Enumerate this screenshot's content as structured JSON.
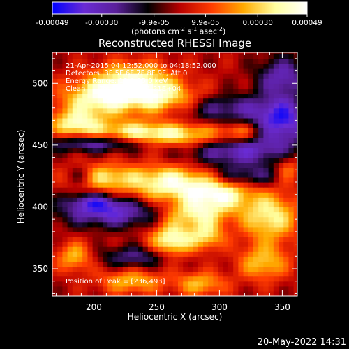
{
  "chart_data": {
    "type": "heatmap",
    "title": "Reconstructed RHESSI Image",
    "xlabel": "Heliocentric X (arcsec)",
    "ylabel": "Heliocentric Y (arcsec)",
    "xlim": [
      167,
      362
    ],
    "ylim": [
      328,
      525
    ],
    "xticks": [
      200,
      250,
      300,
      350
    ],
    "yticks": [
      350,
      400,
      450,
      500
    ],
    "grid": false,
    "colorbar": {
      "location": "top",
      "unit": "(photons cm^-2 s^-1 asec^-2)",
      "range": [
        -0.00049,
        0.00049
      ],
      "tick_values": [
        -0.00049,
        -0.0003,
        -9.9e-05,
        9.9e-05,
        0.0003,
        0.00049
      ],
      "tick_labels": [
        "-0.00049",
        "-0.00030",
        "-9.9e-05",
        "9.9e-05",
        "0.00030",
        "0.00049"
      ],
      "colors": [
        "#0000ff",
        "#6a2bd4",
        "#5a1f9a",
        "#000000",
        "#b80000",
        "#ff3c00",
        "#ffaa00",
        "#ffffa0",
        "#ffffff"
      ]
    },
    "grid_resolution_arcsec": 4,
    "peak_position": [
      236,
      493
    ],
    "sources": [
      {
        "x": 232,
        "y": 498,
        "sx": 22,
        "sy": 12,
        "amp": 1.15
      },
      {
        "x": 200,
        "y": 487,
        "sx": 20,
        "sy": 11,
        "amp": 0.75
      },
      {
        "x": 262,
        "y": 486,
        "sx": 20,
        "sy": 9,
        "amp": 0.65
      },
      {
        "x": 185,
        "y": 467,
        "sx": 14,
        "sy": 8,
        "amp": 0.8
      },
      {
        "x": 225,
        "y": 460,
        "sx": 22,
        "sy": 7,
        "amp": 0.65
      },
      {
        "x": 270,
        "y": 458,
        "sx": 28,
        "sy": 7,
        "amp": 0.9
      },
      {
        "x": 318,
        "y": 460,
        "sx": 12,
        "sy": 6,
        "amp": 0.55
      },
      {
        "x": 205,
        "y": 424,
        "sx": 18,
        "sy": 8,
        "amp": 0.7
      },
      {
        "x": 262,
        "y": 420,
        "sx": 26,
        "sy": 10,
        "amp": 1.0
      },
      {
        "x": 300,
        "y": 410,
        "sx": 18,
        "sy": 9,
        "amp": 0.85
      },
      {
        "x": 340,
        "y": 392,
        "sx": 16,
        "sy": 14,
        "amp": 0.85
      },
      {
        "x": 280,
        "y": 395,
        "sx": 18,
        "sy": 8,
        "amp": 0.8
      },
      {
        "x": 262,
        "y": 373,
        "sx": 12,
        "sy": 10,
        "amp": 1.0
      },
      {
        "x": 290,
        "y": 377,
        "sx": 10,
        "sy": 8,
        "amp": 0.7
      },
      {
        "x": 185,
        "y": 360,
        "sx": 10,
        "sy": 8,
        "amp": 0.65
      },
      {
        "x": 230,
        "y": 340,
        "sx": 18,
        "sy": 7,
        "amp": 0.6
      },
      {
        "x": 285,
        "y": 338,
        "sx": 14,
        "sy": 7,
        "amp": 0.6
      },
      {
        "x": 335,
        "y": 355,
        "sx": 14,
        "sy": 10,
        "amp": 0.65
      },
      {
        "x": 355,
        "y": 430,
        "sx": 8,
        "sy": 8,
        "amp": 0.5
      },
      {
        "x": 205,
        "y": 452,
        "sx": 30,
        "sy": 5,
        "amp": -0.8
      },
      {
        "x": 315,
        "y": 447,
        "sx": 30,
        "sy": 10,
        "amp": -0.8
      },
      {
        "x": 350,
        "y": 470,
        "sx": 16,
        "sy": 12,
        "amp": -0.9
      },
      {
        "x": 215,
        "y": 395,
        "sx": 30,
        "sy": 8,
        "amp": -0.75
      },
      {
        "x": 200,
        "y": 405,
        "sx": 16,
        "sy": 6,
        "amp": -0.6
      },
      {
        "x": 300,
        "y": 480,
        "sx": 30,
        "sy": 8,
        "amp": -0.6
      },
      {
        "x": 190,
        "y": 425,
        "sx": 8,
        "sy": 6,
        "amp": -0.5
      },
      {
        "x": 350,
        "y": 505,
        "sx": 14,
        "sy": 12,
        "amp": -0.7
      },
      {
        "x": 320,
        "y": 425,
        "sx": 22,
        "sy": 6,
        "amp": -0.55
      },
      {
        "x": 235,
        "y": 360,
        "sx": 22,
        "sy": 6,
        "amp": -0.55
      }
    ]
  },
  "annotations": {
    "time_range": "21-Apr-2015 04:12:52.000 to 04:18:52.000",
    "detectors": "Detectors: 3F 5F 6F 7F 8F 9F, Att 0",
    "energy": "Energy Range: 12.0-25.0 keV",
    "algorithm": "Clean",
    "total_counts": "Total counts: 1.21E+04",
    "peak": "Position of Peak = [236,493]"
  },
  "footer": {
    "timestamp": "20-May-2022 14:31"
  }
}
